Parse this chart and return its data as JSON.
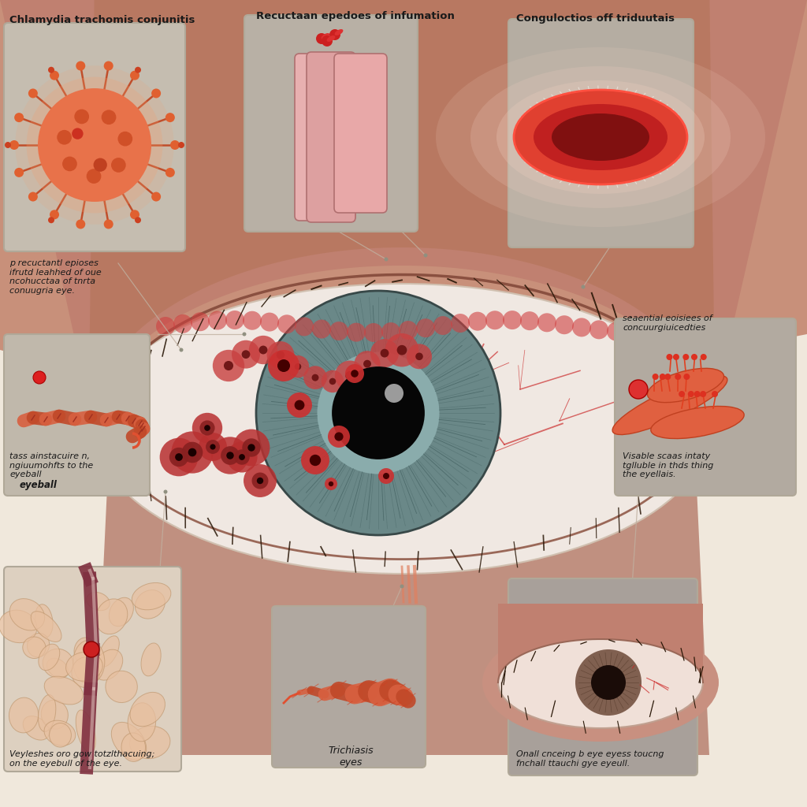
{
  "bg_color": "#f0e8dc",
  "skin_color": "#c8917a",
  "skin_light": "#dba88a",
  "sclera_color": "#f5ede5",
  "iris_color": "#7a9898",
  "iris_dark": "#4a6868",
  "pupil_color": "#0a0808",
  "vessel_color": "#cc3030",
  "follicle_color": "#cc3030",
  "inflamed_color": "#b83030",
  "panel_bg_top": "#c8c0b5",
  "panel_bg_mid": "#bdb5aa",
  "panel_bg_bot": "#b5ada2",
  "virus_color": "#e8724a",
  "bacterium_color": "#e05030",
  "worm_color": "#d86040",
  "title_color": "#1a1a1a",
  "label_color": "#1a1a1a",
  "connector_color": "#b0a090",
  "top_titles": [
    "Chlamydia trachomis conjunitis",
    "Recuctaan epedoes of infumation",
    "Conguloctios off triduutais"
  ],
  "mid_labels_left": "p recuctantl epioses\nifrutd leahhed of oue\nncohucctaa of tnrta\nconuugria eye.",
  "mid_labels_right": "seaential eoisiees of\nconcuurgiuicedties",
  "bot_labels_left2": "tass ainstacuire n,\nngiuumohfts to the\neyeball",
  "bot_labels_right2": "Visable scaas intaty\ntglluble in thds thing\nthe eyellais.",
  "bot_label_left": "Veyleshes oro gow totzlthacuing;\non the eyebull of the eye.",
  "bot_label_center": "Trichiasis\neyes",
  "bot_label_right": "Onall cnceing b eye eyess toucng\nfnchall ttauchi gye eyeull."
}
